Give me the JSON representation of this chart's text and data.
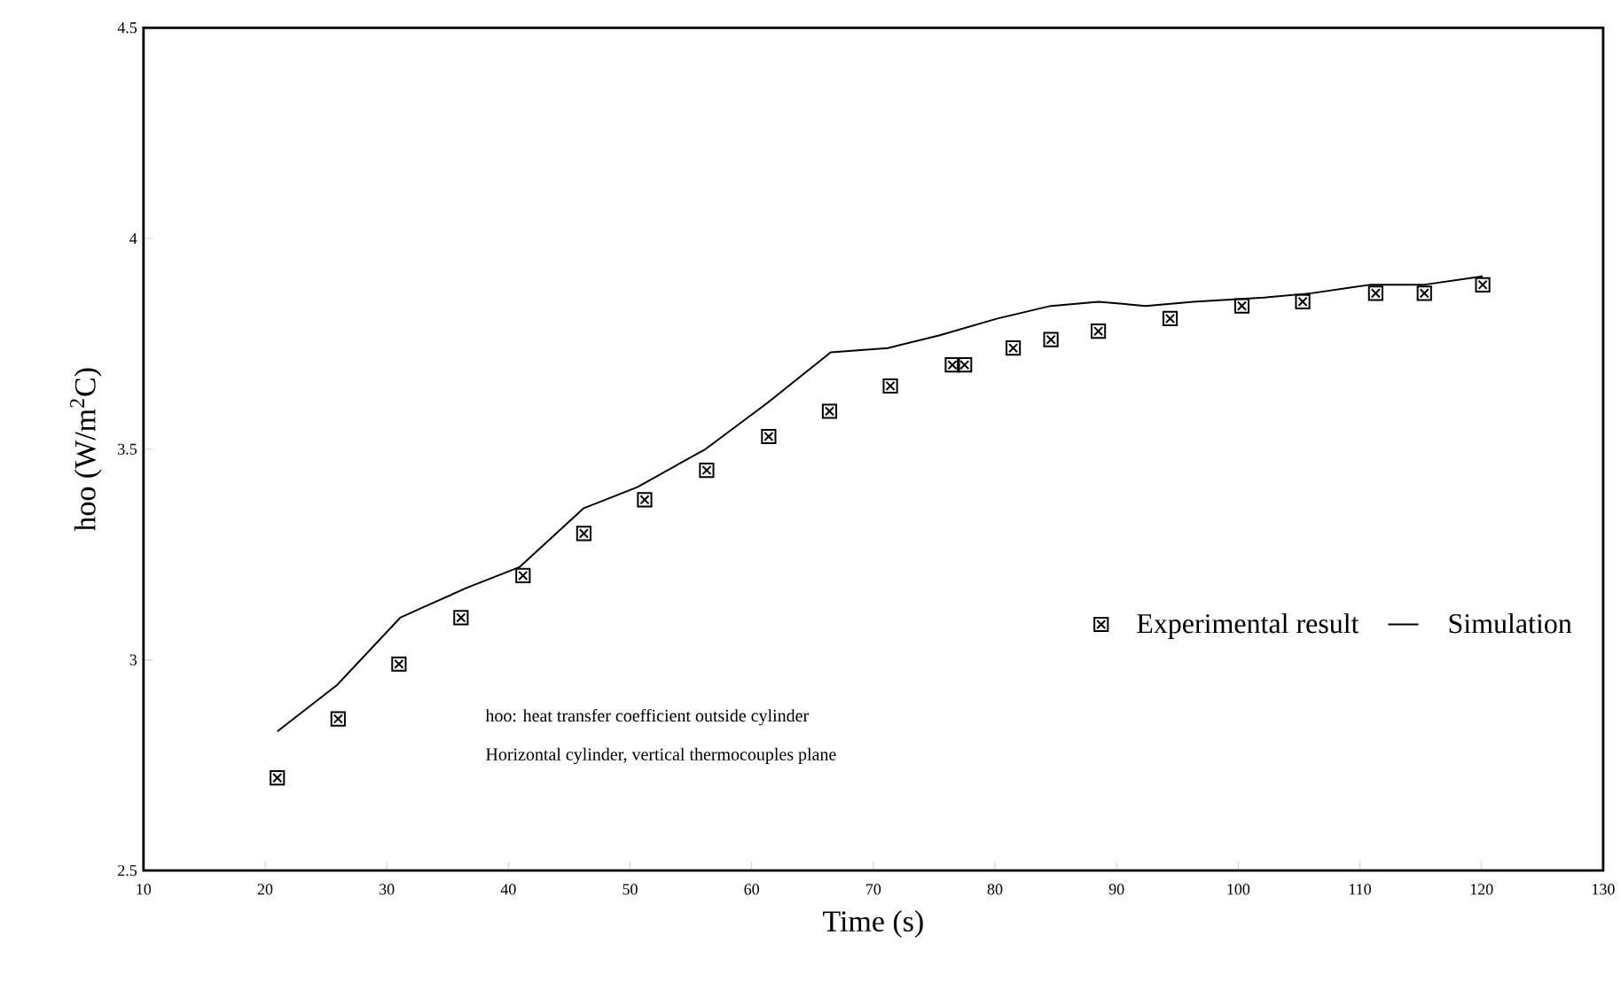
{
  "chart_data": {
    "type": "line",
    "xlabel": "Time (s)",
    "ylabel": "hoo (W/m$^{2}$C)",
    "xlim": [
      10,
      130
    ],
    "xticks": [
      10,
      20,
      30,
      40,
      50,
      60,
      70,
      80,
      90,
      100,
      110,
      120,
      130
    ],
    "ylim": [
      2.5,
      4.5
    ],
    "yticks": [
      2.5,
      3,
      3.5,
      4,
      4.5
    ],
    "grid": false,
    "legend": "bottom right",
    "annotations": [
      "hoo: heat transfer coefficient outside cylinder",
      "Horizontal cylinder, vertical thermocouples plane"
    ],
    "series": [
      {
        "name": "Experimental result",
        "type": "scatter",
        "marker": "cross",
        "color": "#000000",
        "x": [
          21,
          26,
          31,
          36.1,
          41.2,
          46.2,
          51.2,
          56.3,
          61.4,
          66.4,
          71.4,
          76.5,
          77.5,
          81.5,
          84.6,
          88.5,
          94.4,
          100.3,
          105.3,
          111.3,
          115.3,
          120.1
        ],
        "values": [
          2.72,
          2.86,
          2.99,
          3.1,
          3.2,
          3.3,
          3.38,
          3.45,
          3.53,
          3.59,
          3.65,
          3.7,
          3.7,
          3.74,
          3.76,
          3.78,
          3.81,
          3.84,
          3.85,
          3.87,
          3.87,
          3.89
        ]
      },
      {
        "name": "Simulation",
        "marker": "none",
        "line_style": "solid",
        "color": "#000000",
        "x": [
          21,
          25.9,
          31.1,
          33.4,
          36.5,
          40.9,
          46.2,
          50.6,
          56.2,
          61.3,
          66.5,
          71.2,
          75.4,
          80.2,
          84.6,
          88.5,
          92.4,
          96.3,
          102.1,
          106,
          110.8,
          115.2,
          120.1
        ],
        "values": [
          2.83,
          2.94,
          3.1,
          3.13,
          3.17,
          3.22,
          3.36,
          3.41,
          3.5,
          3.61,
          3.73,
          3.74,
          3.77,
          3.81,
          3.84,
          3.85,
          3.84,
          3.85,
          3.86,
          3.87,
          3.89,
          3.89,
          3.91
        ]
      }
    ]
  }
}
